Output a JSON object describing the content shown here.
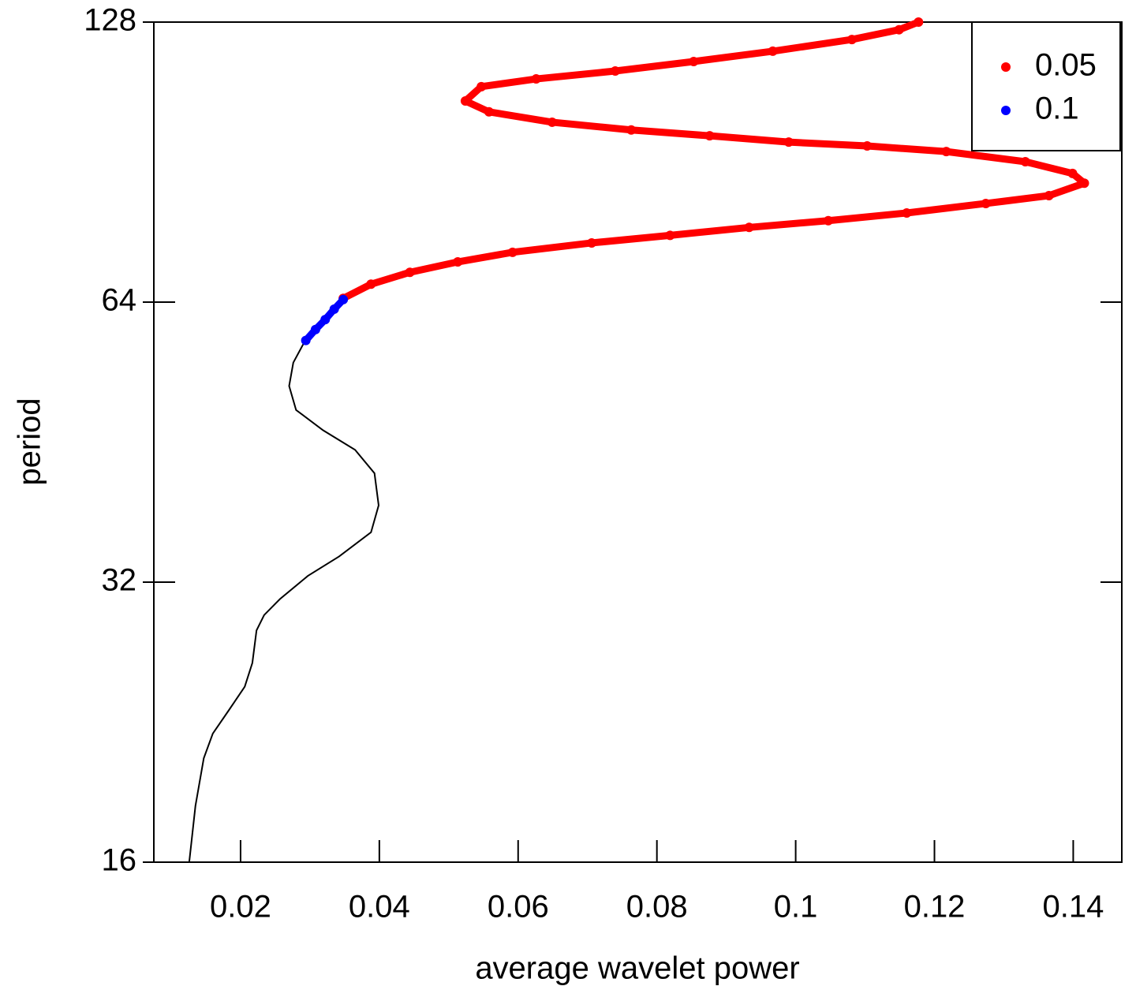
{
  "chart_data": {
    "type": "line",
    "xlabel": "average wavelet power",
    "ylabel": "period",
    "xlim": [
      0.0075,
      0.147
    ],
    "ylim": [
      16,
      128
    ],
    "ylog": true,
    "xticks": [
      0.02,
      0.04,
      0.06,
      0.08,
      0.1,
      0.12,
      0.14
    ],
    "yticks": [
      16,
      32,
      64,
      128
    ],
    "legend": "topright",
    "line": {
      "color": "black",
      "x": [
        0.0126,
        0.0135,
        0.0147,
        0.016,
        0.0183,
        0.0206,
        0.0217,
        0.0223,
        0.0234,
        0.0257,
        0.0297,
        0.0342,
        0.0388,
        0.0399,
        0.0393,
        0.0365,
        0.0319,
        0.028,
        0.027,
        0.0276,
        0.0291
      ],
      "y": [
        16.0,
        18.4,
        20.7,
        22.0,
        23.3,
        24.7,
        26.2,
        28.4,
        29.5,
        30.7,
        32.5,
        34.1,
        36.2,
        38.7,
        41.9,
        44.4,
        46.6,
        49.0,
        52.0,
        55.1,
        57.8
      ]
    },
    "series": [
      {
        "name": "0.05",
        "color": "#ff0000",
        "x": [
          0.0348,
          0.0388,
          0.0444,
          0.0513,
          0.0592,
          0.0706,
          0.0819,
          0.0933,
          0.1047,
          0.116,
          0.1274,
          0.1365,
          0.1416,
          0.1399,
          0.1331,
          0.1217,
          0.1103,
          0.099,
          0.0876,
          0.0763,
          0.0649,
          0.0558,
          0.0524,
          0.0547,
          0.0626,
          0.074,
          0.0853,
          0.0967,
          0.1081,
          0.1149,
          0.1177
        ],
        "y": [
          64.6,
          66.9,
          68.9,
          70.7,
          72.4,
          74.1,
          75.5,
          77.0,
          78.3,
          79.8,
          81.7,
          83.3,
          85.9,
          88.0,
          90.6,
          92.9,
          94.2,
          95.1,
          96.6,
          98.0,
          99.9,
          102.5,
          105.3,
          109.1,
          111.2,
          113.4,
          116.1,
          119.1,
          122.6,
          125.6,
          128.0
        ]
      },
      {
        "name": "0.1",
        "color": "#0000ff",
        "x": [
          0.0294,
          0.0308,
          0.0322,
          0.0335,
          0.0348
        ],
        "y": [
          58.2,
          59.8,
          61.3,
          62.9,
          64.4
        ]
      }
    ]
  }
}
